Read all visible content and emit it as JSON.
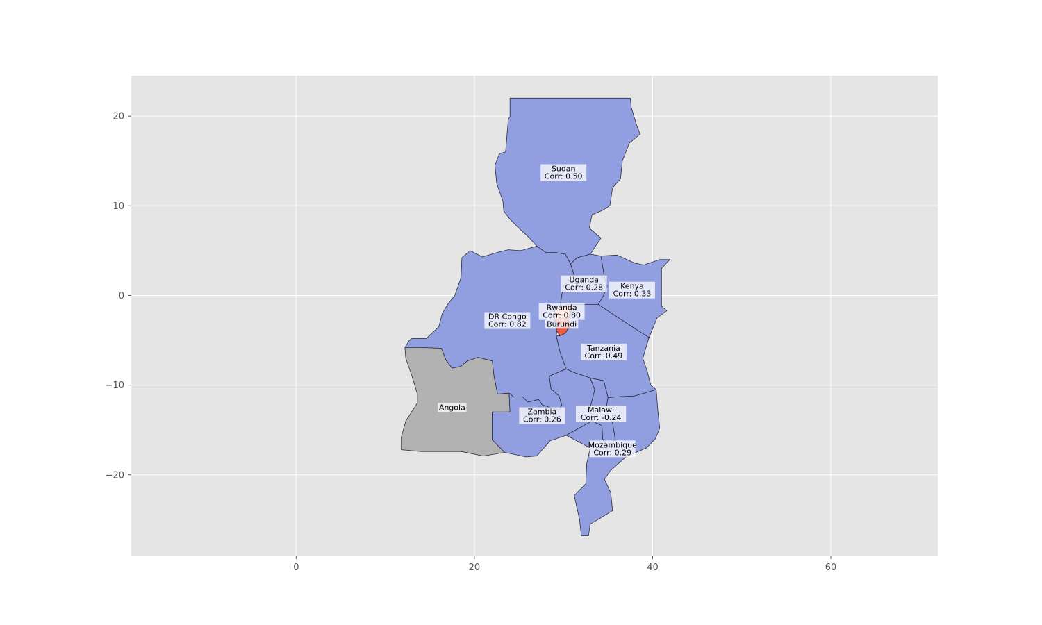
{
  "colors": {
    "axes_background": "#e5e5e5",
    "grid": "#ffffff",
    "country_default": "#919fe0",
    "country_no_data": "#b2b2b2",
    "country_highlight": "#f05a40",
    "border": "#2b2b3a"
  },
  "chart_data": {
    "type": "choropleth-map",
    "xlim": [
      -18.5,
      72.0
    ],
    "ylim": [
      -29.0,
      24.5
    ],
    "x_ticks": [
      0,
      20,
      40,
      60
    ],
    "y_ticks": [
      20,
      10,
      0,
      -10,
      -20
    ],
    "x_tick_labels": [
      "0",
      "20",
      "40",
      "60"
    ],
    "y_tick_labels": [
      "20",
      "10",
      "0",
      "−10",
      "−20"
    ],
    "grid": true,
    "countries": [
      {
        "name": "Sudan",
        "corr_label": "Corr: 0.50",
        "corr": 0.5
      },
      {
        "name": "DR Congo",
        "corr_label": "Corr: 0.82",
        "corr": 0.82
      },
      {
        "name": "Uganda",
        "corr_label": "Corr: 0.28",
        "corr": 0.28
      },
      {
        "name": "Kenya",
        "corr_label": "Corr: 0.33",
        "corr": 0.33
      },
      {
        "name": "Rwanda",
        "corr_label": "Corr: 0.80",
        "corr": 0.8
      },
      {
        "name": "Burundi",
        "corr_label": "",
        "corr": null
      },
      {
        "name": "Tanzania",
        "corr_label": "Corr: 0.49",
        "corr": 0.49
      },
      {
        "name": "Angola",
        "corr_label": "",
        "corr": null
      },
      {
        "name": "Zambia",
        "corr_label": "Corr: 0.26",
        "corr": 0.26
      },
      {
        "name": "Malawi",
        "corr_label": "Corr: -0.24",
        "corr": -0.24
      },
      {
        "name": "Mozambique",
        "corr_label": "Corr: 0.29",
        "corr": 0.29
      }
    ]
  }
}
